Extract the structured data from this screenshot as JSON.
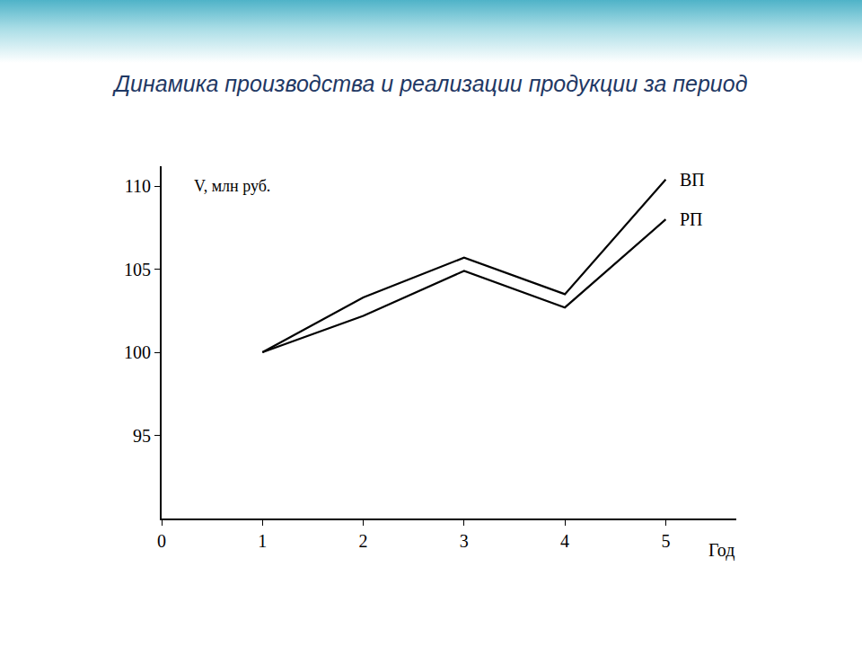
{
  "chart_data": {
    "type": "line",
    "title": "Динамика производства и реализации продукции за период",
    "x_label": "Год",
    "y_label": "V, млн руб.",
    "x": [
      1,
      2,
      3,
      4,
      5
    ],
    "series": [
      {
        "name": "ВП",
        "color": "#000000",
        "values": [
          100,
          103.3,
          105.7,
          103.5,
          110.4
        ]
      },
      {
        "name": "РП",
        "color": "#000000",
        "values": [
          100,
          102.2,
          104.9,
          102.7,
          108.0
        ]
      }
    ],
    "xlim": [
      0,
      5.7
    ],
    "ylim": [
      90,
      111.2
    ],
    "xticks": [
      0,
      1,
      2,
      3,
      4,
      5
    ],
    "yticks": [
      95,
      100,
      105,
      110
    ],
    "grid": false
  }
}
